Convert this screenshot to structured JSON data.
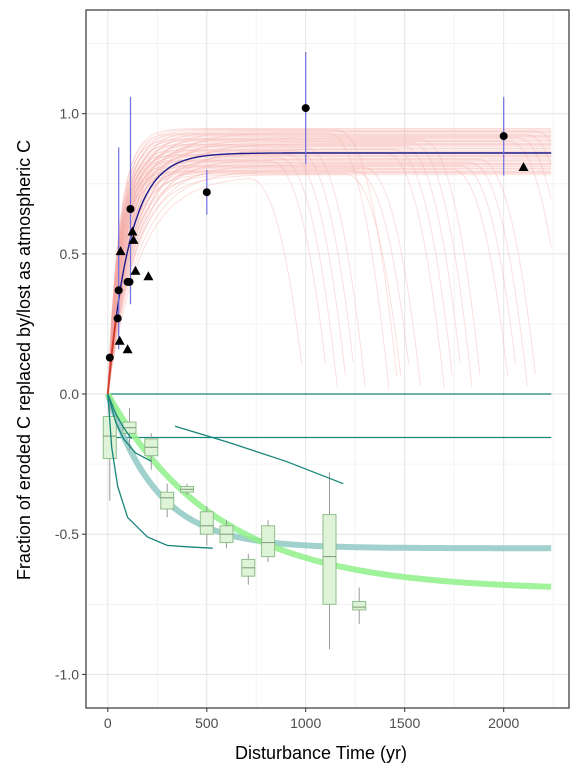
{
  "chart_data": {
    "type": "scatter",
    "xlabel": "Disturbance Time (yr)",
    "ylabel": "Fraction of eroded C replaced by/lost as atmospheric C",
    "xlim": [
      -110,
      2330
    ],
    "ylim": [
      -1.12,
      1.37
    ],
    "x_ticks": [
      "0",
      "500",
      "1000",
      "1500",
      "2000"
    ],
    "x_tick_values": [
      0,
      500,
      1000,
      1500,
      2000
    ],
    "y_ticks": [
      "-1.0",
      "-0.5",
      "0.0",
      "0.5",
      "1.0"
    ],
    "y_tick_values": [
      -1.0,
      -0.5,
      0.0,
      0.5,
      1.0
    ],
    "grid": true,
    "colors": {
      "ensemble": "#f4a6a0",
      "fit_line": "#1a1a8c",
      "fit_line_tail": "#d33a2c",
      "error_bar": "#6f6fe0",
      "point": "#000000",
      "teal": "#17857a",
      "loss_fit_teal": "#8fc9c4",
      "loss_fit_green": "#8ff08a",
      "box_fill": "#dff3d8",
      "box_edge": "#8fbf8a"
    },
    "replacement_fit": {
      "name": "",
      "asymptote": 0.86,
      "rate": 0.009
    },
    "circle_points": [
      {
        "x": 10,
        "y": 0.13
      },
      {
        "x": 50,
        "y": 0.27
      },
      {
        "x": 55,
        "y": 0.37,
        "err": [
          0.16,
          0.88
        ]
      },
      {
        "x": 100,
        "y": 0.4
      },
      {
        "x": 110,
        "y": 0.4
      },
      {
        "x": 115,
        "y": 0.66,
        "err": [
          0.32,
          1.06
        ]
      },
      {
        "x": 500,
        "y": 0.72,
        "err": [
          0.64,
          0.8
        ]
      },
      {
        "x": 1000,
        "y": 1.02,
        "err": [
          0.82,
          1.22
        ]
      },
      {
        "x": 2000,
        "y": 0.92,
        "err": [
          0.78,
          1.06
        ]
      }
    ],
    "triangle_points": [
      {
        "x": 60,
        "y": 0.19
      },
      {
        "x": 65,
        "y": 0.51
      },
      {
        "x": 100,
        "y": 0.16
      },
      {
        "x": 125,
        "y": 0.58
      },
      {
        "x": 130,
        "y": 0.55
      },
      {
        "x": 140,
        "y": 0.44
      },
      {
        "x": 205,
        "y": 0.42
      },
      {
        "x": 2100,
        "y": 0.81
      }
    ],
    "loss_fits": [
      {
        "name": "",
        "asymptote": -0.55,
        "rate": 0.004
      },
      {
        "name": "",
        "asymptote": -0.7,
        "rate": 0.0018
      }
    ],
    "flat_lines": [
      {
        "x": [
          0,
          2240
        ],
        "y": [
          0.0,
          0.0
        ]
      },
      {
        "x": [
          0,
          2240
        ],
        "y": [
          -0.155,
          -0.155
        ]
      }
    ],
    "thin_curves": [
      {
        "x": [
          0,
          20,
          50,
          100,
          200,
          300,
          400,
          530
        ],
        "y": [
          0.0,
          -0.19,
          -0.33,
          -0.44,
          -0.51,
          -0.54,
          -0.545,
          -0.55
        ]
      },
      {
        "x": [
          0,
          40,
          80,
          140,
          220
        ],
        "y": [
          0.0,
          -0.1,
          -0.16,
          -0.21,
          -0.24
        ]
      },
      {
        "x": [
          0,
          40,
          80,
          120
        ],
        "y": [
          0.0,
          -0.07,
          -0.12,
          -0.16
        ]
      },
      {
        "x": [
          340,
          600,
          900,
          1190
        ],
        "y": [
          -0.115,
          -0.17,
          -0.24,
          -0.32
        ]
      }
    ],
    "boxes": [
      {
        "x": 10,
        "q1": -0.23,
        "q3": -0.08,
        "median": -0.15,
        "lo": -0.38,
        "hi": -0.02
      },
      {
        "x": 110,
        "q1": -0.14,
        "q3": -0.1,
        "median": -0.12,
        "lo": -0.2,
        "hi": -0.05
      },
      {
        "x": 220,
        "q1": -0.22,
        "q3": -0.16,
        "median": -0.19,
        "lo": -0.27,
        "hi": -0.14
      },
      {
        "x": 300,
        "q1": -0.41,
        "q3": -0.35,
        "median": -0.37,
        "lo": -0.44,
        "hi": -0.32
      },
      {
        "x": 400,
        "q1": -0.35,
        "q3": -0.33,
        "median": -0.34,
        "lo": -0.36,
        "hi": -0.32
      },
      {
        "x": 500,
        "q1": -0.5,
        "q3": -0.42,
        "median": -0.47,
        "lo": -0.54,
        "hi": -0.4
      },
      {
        "x": 600,
        "q1": -0.53,
        "q3": -0.47,
        "median": -0.5,
        "lo": -0.55,
        "hi": -0.45
      },
      {
        "x": 710,
        "q1": -0.65,
        "q3": -0.59,
        "median": -0.62,
        "lo": -0.68,
        "hi": -0.57
      },
      {
        "x": 810,
        "q1": -0.58,
        "q3": -0.47,
        "median": -0.53,
        "lo": -0.6,
        "hi": -0.45
      },
      {
        "x": 1120,
        "q1": -0.75,
        "q3": -0.43,
        "median": -0.58,
        "lo": -0.91,
        "hi": -0.28
      },
      {
        "x": 1270,
        "q1": -0.77,
        "q3": -0.74,
        "median": -0.76,
        "lo": -0.82,
        "hi": -0.69
      }
    ]
  }
}
